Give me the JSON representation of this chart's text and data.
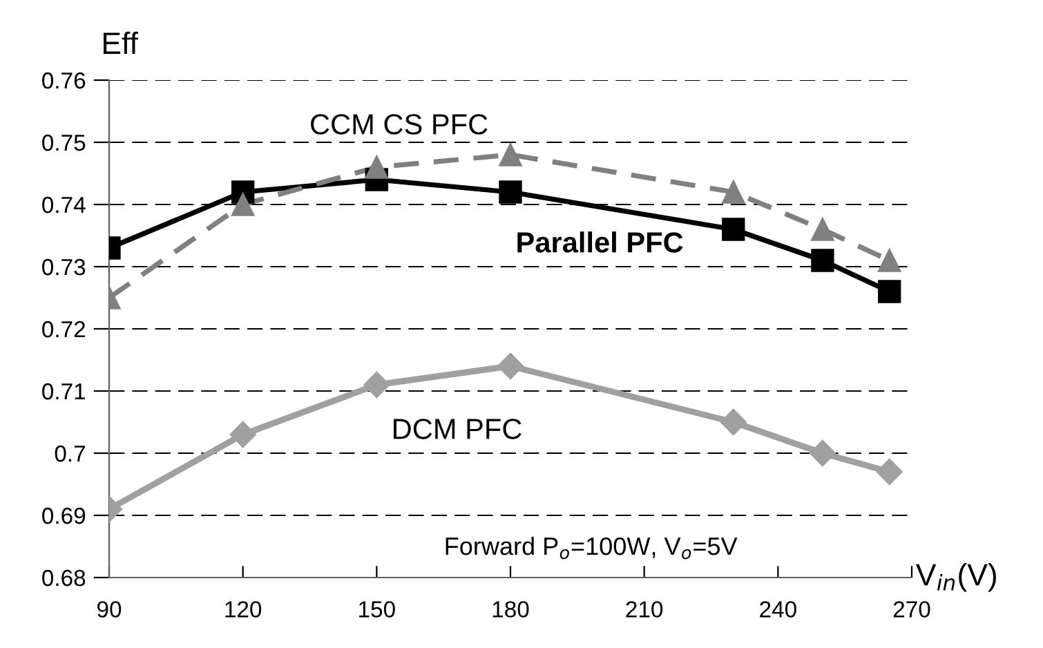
{
  "chart_data": {
    "type": "line",
    "xlabel": "V$_{in}$(V)",
    "ylabel": "Eff",
    "x": [
      90,
      120,
      150,
      180,
      230,
      250,
      265
    ],
    "series": [
      {
        "name": "Parallel PFC",
        "color": "#000000",
        "marker": "square",
        "line_style": "solid",
        "values": [
          0.733,
          0.742,
          0.744,
          0.742,
          0.736,
          0.731,
          0.726
        ]
      },
      {
        "name": "CCM CS PFC",
        "color": "#808080",
        "marker": "triangle",
        "line_style": "dashed",
        "values": [
          0.725,
          0.74,
          0.746,
          0.748,
          0.742,
          0.736,
          0.731
        ]
      },
      {
        "name": "DCM PFC",
        "color": "#a0a0a0",
        "marker": "diamond",
        "line_style": "solid",
        "values": [
          0.691,
          0.703,
          0.711,
          0.714,
          0.705,
          0.7,
          0.697
        ]
      }
    ],
    "xlim": [
      90,
      270
    ],
    "xticks": [
      90,
      120,
      150,
      180,
      210,
      240,
      270
    ],
    "ylim": [
      0.68,
      0.76
    ],
    "yticks": [
      {
        "value": 0.68,
        "label": "0.68"
      },
      {
        "value": 0.69,
        "label": "0.69"
      },
      {
        "value": 0.7,
        "label": "0.7"
      },
      {
        "value": 0.71,
        "label": "0.71"
      },
      {
        "value": 0.72,
        "label": "0.72"
      },
      {
        "value": 0.73,
        "label": "0.73"
      },
      {
        "value": 0.74,
        "label": "0.74"
      },
      {
        "value": 0.75,
        "label": "0.75"
      },
      {
        "value": 0.76,
        "label": "0.76"
      }
    ],
    "grid": "y",
    "legend": false,
    "annotations": [
      "Forward P$_{o}$=100W, V$_{o}$=5V"
    ]
  }
}
